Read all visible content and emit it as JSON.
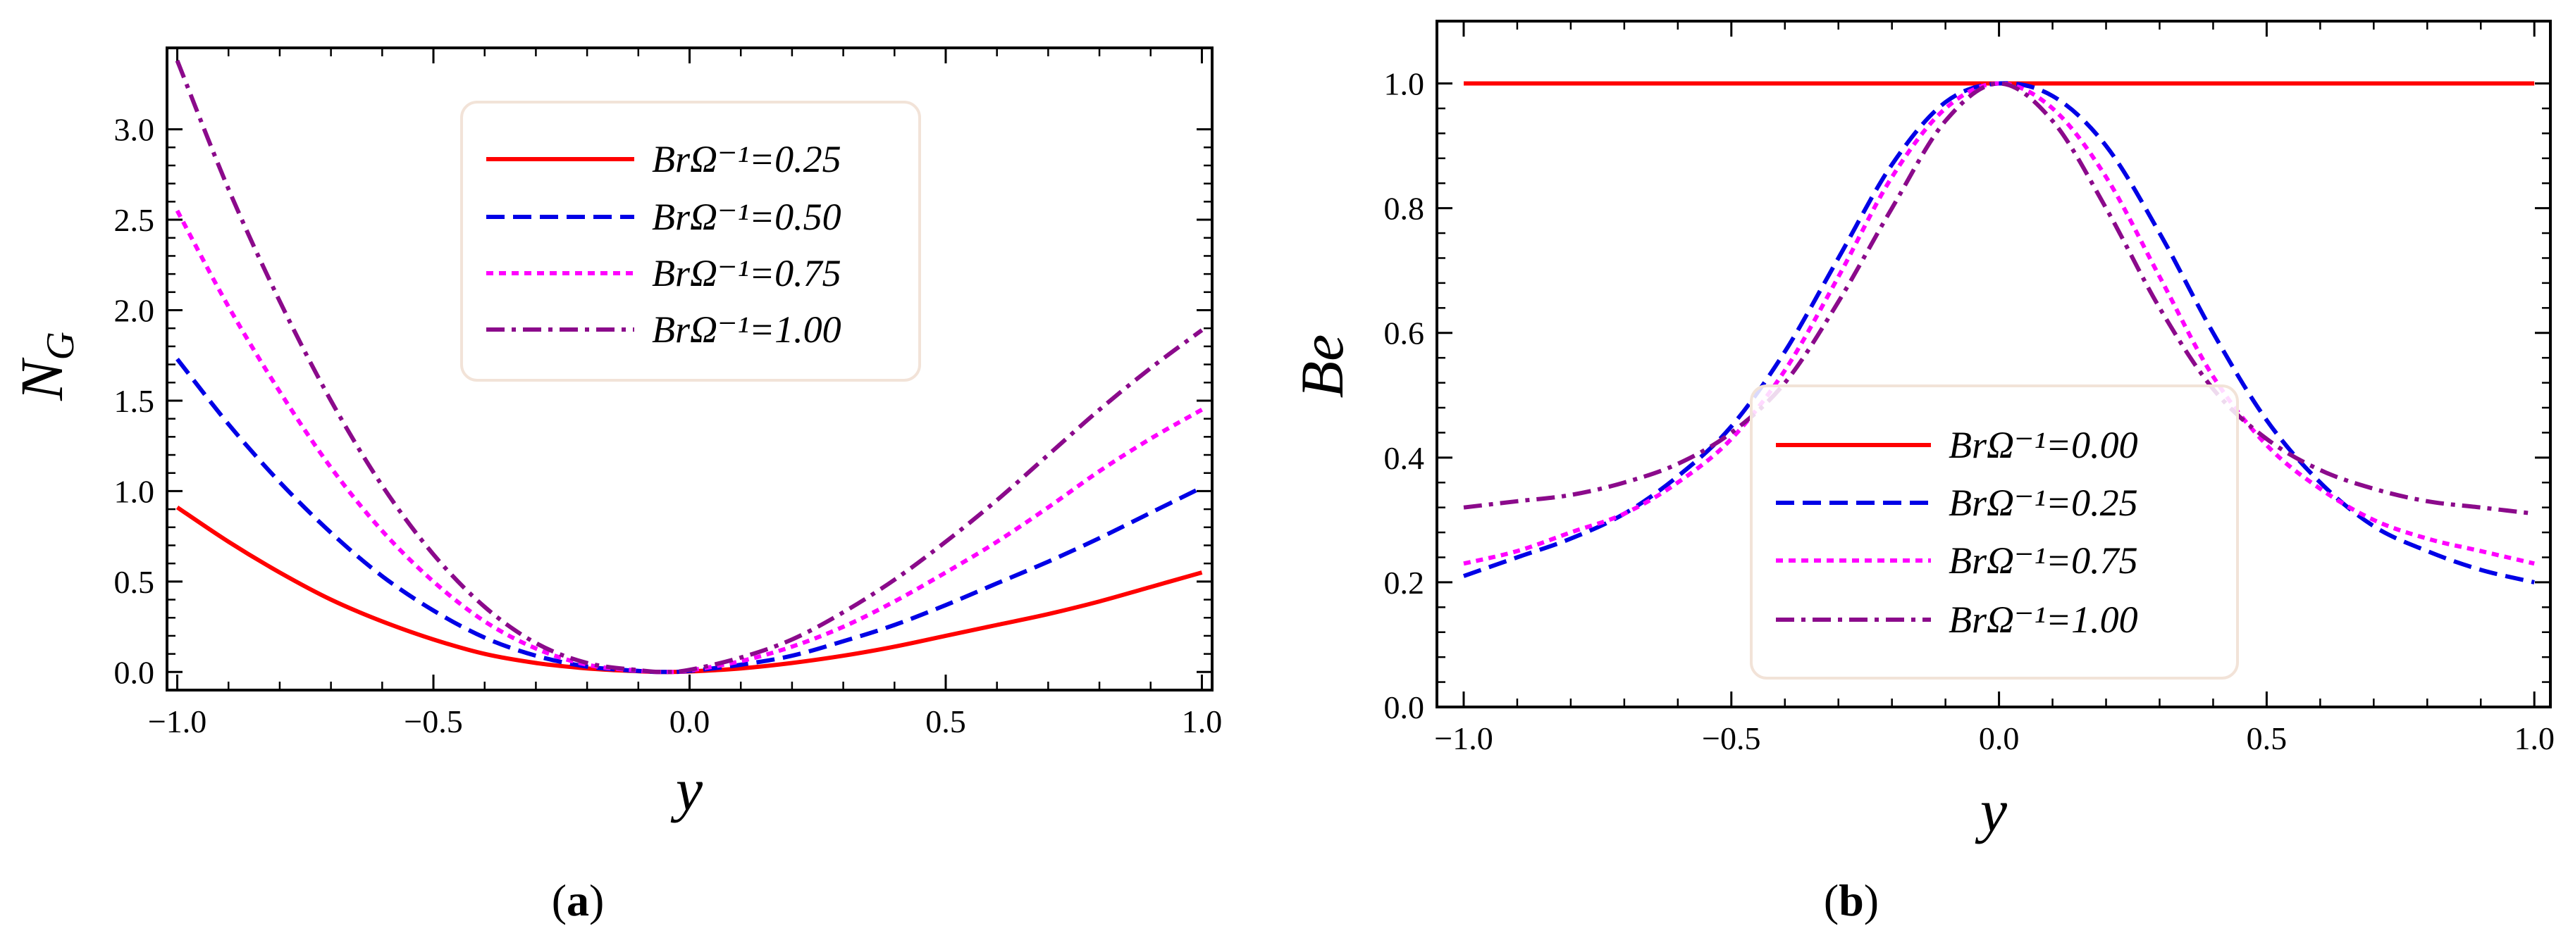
{
  "chart_data": [
    {
      "type": "line",
      "panel_label": "a",
      "xlabel": "y",
      "ylabel_main": "N",
      "ylabel_sub": "G",
      "xlim": [
        -1.02,
        1.02
      ],
      "ylim": [
        -0.1,
        3.45
      ],
      "xticks": [
        -1.0,
        -0.5,
        0.0,
        0.5,
        1.0
      ],
      "xtick_labels": [
        "−1.0",
        "−0.5",
        "0.0",
        "0.5",
        "1.0"
      ],
      "yticks": [
        0.0,
        0.5,
        1.0,
        1.5,
        2.0,
        2.5,
        3.0
      ],
      "ytick_labels": [
        "0.0",
        "0.5",
        "1.0",
        "1.5",
        "2.0",
        "2.5",
        "3.0"
      ],
      "legend_position": "top-center",
      "x": [
        -1.0,
        -0.9,
        -0.8,
        -0.7,
        -0.6,
        -0.5,
        -0.4,
        -0.3,
        -0.2,
        -0.1,
        -0.05,
        0.0,
        0.1,
        0.2,
        0.3,
        0.4,
        0.5,
        0.6,
        0.7,
        0.8,
        0.9,
        1.0
      ],
      "series": [
        {
          "name": "BrΩ⁻¹=0.25",
          "color": "#ff0000",
          "dash": "solid",
          "values": [
            0.91,
            0.72,
            0.55,
            0.4,
            0.28,
            0.18,
            0.1,
            0.05,
            0.02,
            0.004,
            0.0,
            0.003,
            0.02,
            0.05,
            0.09,
            0.14,
            0.2,
            0.26,
            0.32,
            0.39,
            0.47,
            0.55
          ]
        },
        {
          "name": "BrΩ⁻¹=0.50",
          "color": "#0000e6",
          "dash": "dashed",
          "values": [
            1.73,
            1.37,
            1.05,
            0.77,
            0.53,
            0.34,
            0.19,
            0.09,
            0.03,
            0.006,
            0.0,
            0.006,
            0.04,
            0.09,
            0.17,
            0.26,
            0.37,
            0.49,
            0.61,
            0.74,
            0.88,
            1.02
          ]
        },
        {
          "name": "BrΩ⁻¹=0.75",
          "color": "#ff00ff",
          "dash": "dotted",
          "values": [
            2.55,
            2.02,
            1.55,
            1.13,
            0.78,
            0.5,
            0.28,
            0.13,
            0.04,
            0.008,
            0.0,
            0.009,
            0.06,
            0.14,
            0.25,
            0.39,
            0.55,
            0.72,
            0.91,
            1.11,
            1.29,
            1.45
          ]
        },
        {
          "name": "BrΩ⁻¹=1.00",
          "color": "#8b0a8b",
          "dash": "dashdot",
          "values": [
            3.38,
            2.67,
            2.05,
            1.5,
            1.03,
            0.65,
            0.36,
            0.16,
            0.05,
            0.01,
            0.0,
            0.012,
            0.08,
            0.18,
            0.33,
            0.51,
            0.72,
            0.95,
            1.2,
            1.45,
            1.68,
            1.89
          ]
        }
      ]
    },
    {
      "type": "line",
      "panel_label": "b",
      "xlabel": "y",
      "ylabel_main": "Be",
      "ylabel_sub": "",
      "xlim": [
        -1.05,
        1.03
      ],
      "ylim": [
        0.0,
        1.1
      ],
      "xticks": [
        -1.0,
        -0.5,
        0.0,
        0.5,
        1.0
      ],
      "xtick_labels": [
        "−1.0",
        "−0.5",
        "0.0",
        "0.5",
        "1.0"
      ],
      "yticks": [
        0.0,
        0.2,
        0.4,
        0.6,
        0.8,
        1.0
      ],
      "ytick_labels": [
        "0.0",
        "0.2",
        "0.4",
        "0.6",
        "0.8",
        "1.0"
      ],
      "legend_position": "lower-center",
      "x": [
        -1.0,
        -0.9,
        -0.8,
        -0.7,
        -0.6,
        -0.5,
        -0.4,
        -0.3,
        -0.2,
        -0.1,
        0.0,
        0.1,
        0.2,
        0.3,
        0.4,
        0.5,
        0.6,
        0.7,
        0.8,
        0.9,
        1.0
      ],
      "series": [
        {
          "name": "BrΩ⁻¹=0.00",
          "color": "#ff0000",
          "dash": "solid",
          "values": [
            1.0,
            1.0,
            1.0,
            1.0,
            1.0,
            1.0,
            1.0,
            1.0,
            1.0,
            1.0,
            1.0,
            1.0,
            1.0,
            1.0,
            1.0,
            1.0,
            1.0,
            1.0,
            1.0,
            1.0,
            1.0
          ]
        },
        {
          "name": "BrΩ⁻¹=0.25",
          "color": "#0000e6",
          "dash": "dashed",
          "values": [
            0.21,
            0.24,
            0.27,
            0.31,
            0.37,
            0.45,
            0.57,
            0.72,
            0.87,
            0.97,
            1.0,
            0.98,
            0.9,
            0.76,
            0.6,
            0.46,
            0.36,
            0.29,
            0.25,
            0.22,
            0.2
          ]
        },
        {
          "name": "BrΩ⁻¹=0.75",
          "color": "#ff00ff",
          "dash": "dotted",
          "values": [
            0.23,
            0.25,
            0.28,
            0.31,
            0.36,
            0.43,
            0.54,
            0.69,
            0.85,
            0.96,
            1.0,
            0.96,
            0.85,
            0.69,
            0.53,
            0.42,
            0.35,
            0.3,
            0.27,
            0.25,
            0.23
          ]
        },
        {
          "name": "BrΩ⁻¹=1.00",
          "color": "#8b0a8b",
          "dash": "dashdot",
          "values": [
            0.32,
            0.33,
            0.34,
            0.36,
            0.39,
            0.44,
            0.52,
            0.65,
            0.8,
            0.94,
            1.0,
            0.94,
            0.8,
            0.64,
            0.51,
            0.43,
            0.38,
            0.35,
            0.33,
            0.32,
            0.31
          ]
        }
      ]
    }
  ]
}
